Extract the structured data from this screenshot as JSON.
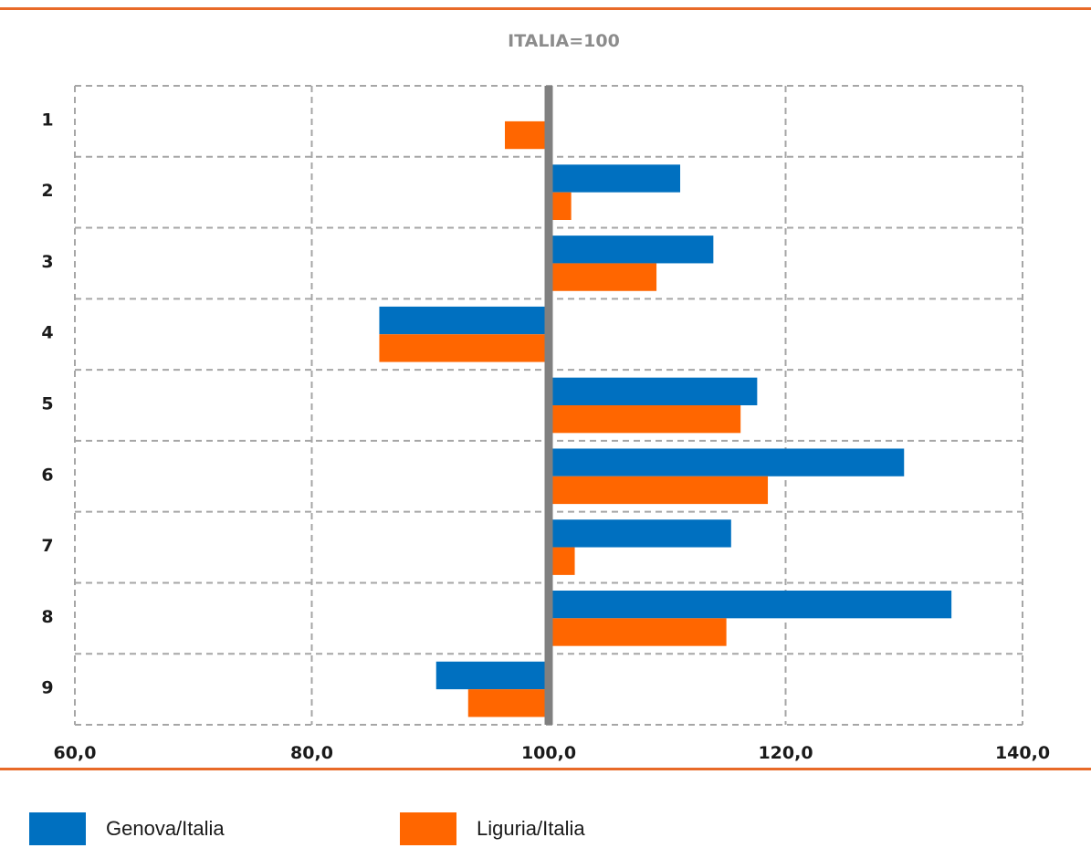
{
  "chart_data": {
    "type": "bar",
    "orientation": "horizontal",
    "title": "ITALIA=100",
    "categories": [
      "1",
      "2",
      "3",
      "4",
      "5",
      "6",
      "7",
      "8",
      "9"
    ],
    "x_tick_labels": [
      "60,0",
      "80,0",
      "100,0",
      "120,0",
      "140,0"
    ],
    "xlim": [
      60,
      140
    ],
    "baseline": 100,
    "grid": true,
    "legend_position": "bottom",
    "series": [
      {
        "name": "Genova/Italia",
        "color": "#0070c0",
        "values": [
          null,
          111.1,
          113.9,
          85.7,
          117.6,
          130.0,
          115.4,
          134.0,
          90.5
        ]
      },
      {
        "name": "Liguria/Italia",
        "color": "#ff6600",
        "values": [
          96.3,
          101.9,
          109.1,
          85.7,
          116.2,
          118.5,
          102.2,
          115.0,
          93.2
        ]
      }
    ]
  },
  "colors": {
    "accent_rule": "#e86a28",
    "axis_line": "#808080",
    "grid": "#a6a6a6"
  }
}
